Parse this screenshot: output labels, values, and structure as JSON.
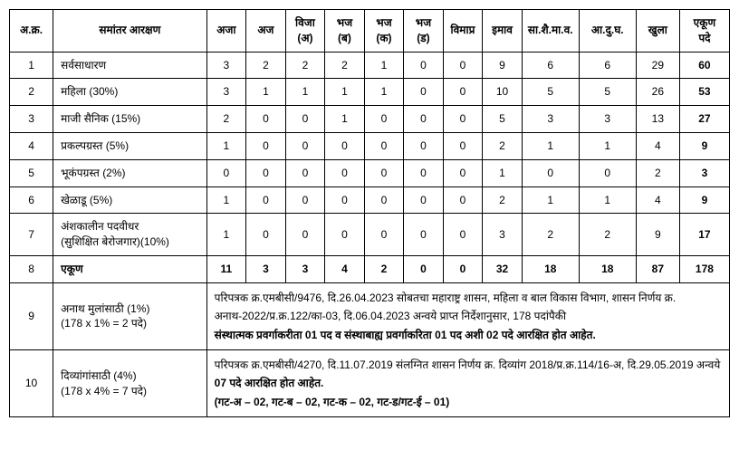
{
  "header": {
    "col_idx": "अ.क्र.",
    "col_label": "समांतर आरक्षण",
    "col_aja": "अजा",
    "col_aj": "अज",
    "col_vija": "विजा\n(अ)",
    "col_bhaj_b": "भज\n(ब)",
    "col_bhaj_k": "भज\n(क)",
    "col_bhaj_d": "भज\n(ड)",
    "col_vimapr": "विमाप्र",
    "col_imav": "इमाव",
    "col_sashaimav": "सा.शै.मा.व.",
    "col_adugh": "आ.दु.घ.",
    "col_khula": "खुला",
    "col_total": "एकूण\nपदे"
  },
  "rows": [
    {
      "idx": "1",
      "label": "सर्वसाधारण",
      "vals": [
        "3",
        "2",
        "2",
        "2",
        "1",
        "0",
        "0",
        "9",
        "6",
        "6",
        "29"
      ],
      "total": "60"
    },
    {
      "idx": "2",
      "label": "महिला (30%)",
      "vals": [
        "3",
        "1",
        "1",
        "1",
        "1",
        "0",
        "0",
        "10",
        "5",
        "5",
        "26"
      ],
      "total": "53"
    },
    {
      "idx": "3",
      "label": "माजी सैनिक (15%)",
      "vals": [
        "2",
        "0",
        "0",
        "1",
        "0",
        "0",
        "0",
        "5",
        "3",
        "3",
        "13"
      ],
      "total": "27"
    },
    {
      "idx": "4",
      "label": "प्रकल्पग्रस्त (5%)",
      "vals": [
        "1",
        "0",
        "0",
        "0",
        "0",
        "0",
        "0",
        "2",
        "1",
        "1",
        "4"
      ],
      "total": "9"
    },
    {
      "idx": "5",
      "label": "भूकंपग्रस्त (2%)",
      "vals": [
        "0",
        "0",
        "0",
        "0",
        "0",
        "0",
        "0",
        "1",
        "0",
        "0",
        "2"
      ],
      "total": "3"
    },
    {
      "idx": "6",
      "label": "खेळाडू (5%)",
      "vals": [
        "1",
        "0",
        "0",
        "0",
        "0",
        "0",
        "0",
        "2",
        "1",
        "1",
        "4"
      ],
      "total": "9"
    },
    {
      "idx": "7",
      "label": "अंशकालीन पदवीधर\n(सुशिक्षित बेरोजगार)(10%)",
      "vals": [
        "1",
        "0",
        "0",
        "0",
        "0",
        "0",
        "0",
        "3",
        "2",
        "2",
        "9"
      ],
      "total": "17"
    }
  ],
  "total_row": {
    "idx": "8",
    "label": "एकूण",
    "vals": [
      "11",
      "3",
      "3",
      "4",
      "2",
      "0",
      "0",
      "32",
      "18",
      "18",
      "87"
    ],
    "total": "178"
  },
  "note_rows": [
    {
      "idx": "9",
      "label": "अनाथ मुलांसाठी (1%)\n(178 x 1% = 2 पदे)",
      "text": "परिपत्रक क्र.एमबीसी/9476, दि.26.04.2023 सोबतचा महाराष्ट्र शासन, महिला व बाल विकास विभाग, शासन निर्णय क्र. अनाथ-2022/प्र.क्र.122/का-03, दि.06.04.2023 अन्वये प्राप्त निर्देशानुसार, 178 पदांपैकी",
      "bold": "संस्थात्मक प्रवर्गाकरीता 01 पद व संस्थाबाह्य प्रवर्गाकरिता 01 पद अशी 02 पदे आरक्षित होत आहेत."
    },
    {
      "idx": "10",
      "label": "दिव्यांगांसाठी (4%)\n(178 x 4% = 7 पदे)",
      "text": "परिपत्रक क्र.एमबीसी/4270, दि.11.07.2019 संलग्नित शासन निर्णय क्र. दिव्यांग 2018/प्र.क्र.114/16-अ, दि.29.05.2019 अन्वये ",
      "bold1": "07 पदे आरक्षित होत आहेत.",
      "bold2": "(गट-अ – 02, गट-ब – 02, गट-क – 02, गट-ड/गट-ई – 01)"
    }
  ]
}
